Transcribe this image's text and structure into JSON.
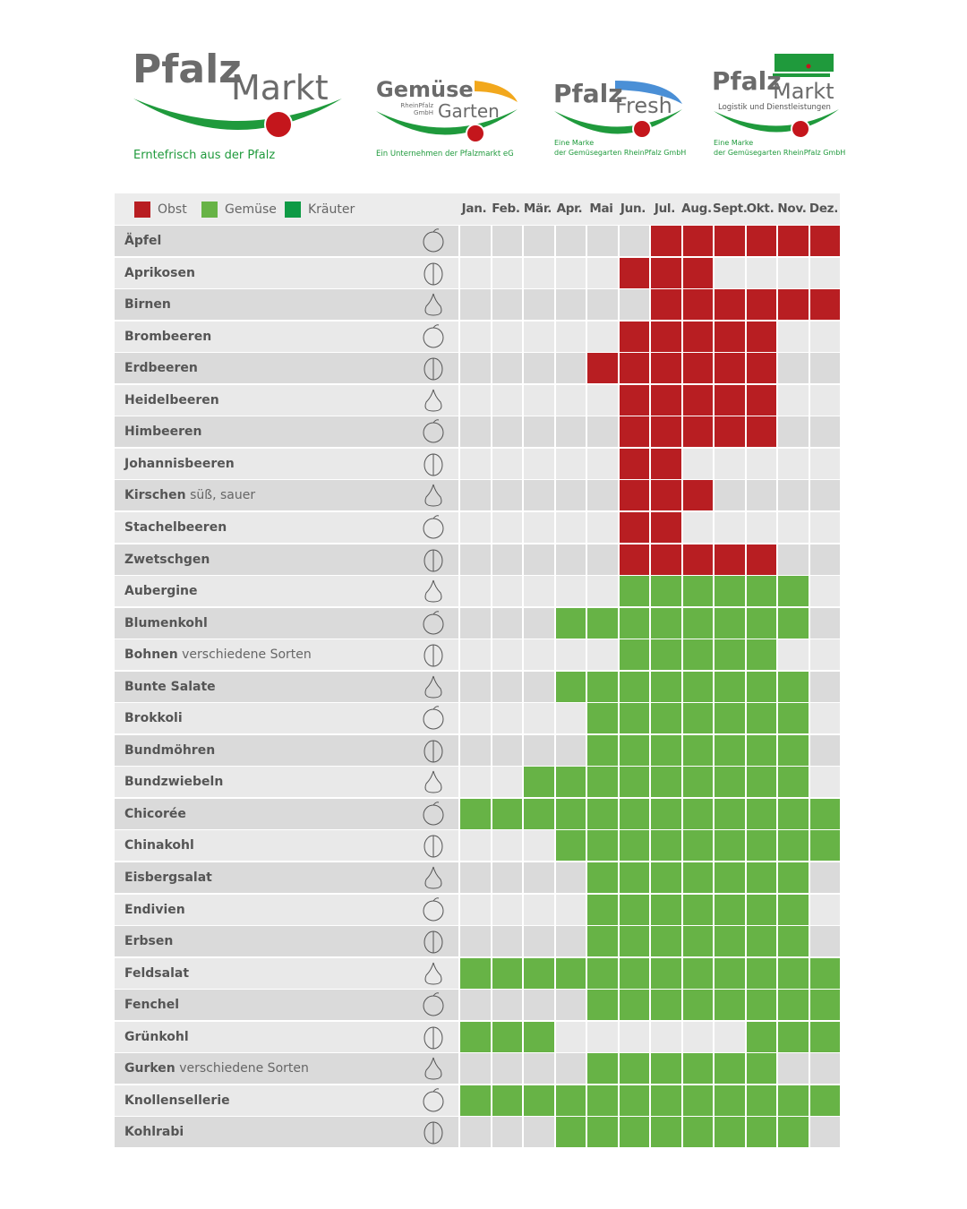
{
  "logos": [
    {
      "word1": "Pfalz",
      "word2": "Markt",
      "tagline": "Erntefrisch aus der Pfalz"
    },
    {
      "word1": "Gemüse",
      "word2": "Garten",
      "sub": "RheinPfalz GmbH",
      "tagline": "Ein Unternehmen der Pfalzmarkt eG"
    },
    {
      "word1": "Pfalz",
      "word2": "Fresh",
      "tagline1": "Eine Marke",
      "tagline2": "der Gemüsegarten RheinPfalz GmbH"
    },
    {
      "word1": "Pfalz",
      "word2": "Markt",
      "sub": "Logistik und Dienstleistungen",
      "tagline1": "Eine Marke",
      "tagline2": "der Gemüsegarten RheinPfalz GmbH"
    }
  ],
  "colors": {
    "obst": "#b81e22",
    "gemuese": "#67b346",
    "kraeuter": "#0e9a45",
    "row_dark": "#dadada",
    "row_light": "#e9e9e9",
    "logo_green": "#1f9a3c",
    "logo_red": "#c4161c"
  },
  "chart_data": {
    "type": "table",
    "legend": [
      {
        "label": "Obst",
        "color": "#b81e22"
      },
      {
        "label": "Gemüse",
        "color": "#67b346"
      },
      {
        "label": "Kräuter",
        "color": "#0e9a45"
      }
    ],
    "months": [
      "Jan.",
      "Feb.",
      "Mär.",
      "Apr.",
      "Mai",
      "Jun.",
      "Jul.",
      "Aug.",
      "Sept.",
      "Okt.",
      "Nov.",
      "Dez."
    ],
    "rows": [
      {
        "name": "Äpfel",
        "note": "",
        "category": "obst",
        "icon": "apple-icon",
        "months": [
          7,
          8,
          9,
          10,
          11,
          12
        ]
      },
      {
        "name": "Aprikosen",
        "note": "",
        "category": "obst",
        "icon": "apricot-icon",
        "months": [
          6,
          7,
          8
        ]
      },
      {
        "name": "Birnen",
        "note": "",
        "category": "obst",
        "icon": "pear-icon",
        "months": [
          7,
          8,
          9,
          10,
          11,
          12
        ]
      },
      {
        "name": "Brombeeren",
        "note": "",
        "category": "obst",
        "icon": "blackberry-icon",
        "months": [
          6,
          7,
          8,
          9,
          10
        ]
      },
      {
        "name": "Erdbeeren",
        "note": "",
        "category": "obst",
        "icon": "strawberry-icon",
        "months": [
          5,
          6,
          7,
          8,
          9,
          10
        ]
      },
      {
        "name": "Heidelbeeren",
        "note": "",
        "category": "obst",
        "icon": "blueberry-icon",
        "months": [
          6,
          7,
          8,
          9,
          10
        ]
      },
      {
        "name": "Himbeeren",
        "note": "",
        "category": "obst",
        "icon": "raspberry-icon",
        "months": [
          6,
          7,
          8,
          9,
          10
        ]
      },
      {
        "name": "Johannisbeeren",
        "note": "",
        "category": "obst",
        "icon": "currant-icon",
        "months": [
          6,
          7
        ]
      },
      {
        "name": "Kirschen",
        "note": "süß, sauer",
        "category": "obst",
        "icon": "cherry-icon",
        "months": [
          6,
          7,
          8
        ]
      },
      {
        "name": "Stachelbeeren",
        "note": "",
        "category": "obst",
        "icon": "gooseberry-icon",
        "months": [
          6,
          7
        ]
      },
      {
        "name": "Zwetschgen",
        "note": "",
        "category": "obst",
        "icon": "plum-icon",
        "months": [
          6,
          7,
          8,
          9,
          10
        ]
      },
      {
        "name": "Aubergine",
        "note": "",
        "category": "gemuese",
        "icon": "eggplant-icon",
        "months": [
          6,
          7,
          8,
          9,
          10,
          11
        ]
      },
      {
        "name": "Blumenkohl",
        "note": "",
        "category": "gemuese",
        "icon": "cauliflower-icon",
        "months": [
          4,
          5,
          6,
          7,
          8,
          9,
          10,
          11
        ]
      },
      {
        "name": "Bohnen",
        "note": "verschiedene Sorten",
        "category": "gemuese",
        "icon": "beans-icon",
        "months": [
          6,
          7,
          8,
          9,
          10
        ]
      },
      {
        "name": "Bunte Salate",
        "note": "",
        "category": "gemuese",
        "icon": "lettuce-icon",
        "months": [
          4,
          5,
          6,
          7,
          8,
          9,
          10,
          11
        ]
      },
      {
        "name": "Brokkoli",
        "note": "",
        "category": "gemuese",
        "icon": "broccoli-icon",
        "months": [
          5,
          6,
          7,
          8,
          9,
          10,
          11
        ]
      },
      {
        "name": "Bundmöhren",
        "note": "",
        "category": "gemuese",
        "icon": "carrot-icon",
        "months": [
          5,
          6,
          7,
          8,
          9,
          10,
          11
        ]
      },
      {
        "name": "Bundzwiebeln",
        "note": "",
        "category": "gemuese",
        "icon": "spring-onion-icon",
        "months": [
          3,
          4,
          5,
          6,
          7,
          8,
          9,
          10,
          11
        ]
      },
      {
        "name": "Chicorée",
        "note": "",
        "category": "gemuese",
        "icon": "chicory-icon",
        "months": [
          1,
          2,
          3,
          4,
          5,
          6,
          7,
          8,
          9,
          10,
          11,
          12
        ]
      },
      {
        "name": "Chinakohl",
        "note": "",
        "category": "gemuese",
        "icon": "chinese-cabbage-icon",
        "months": [
          4,
          5,
          6,
          7,
          8,
          9,
          10,
          11,
          12
        ]
      },
      {
        "name": "Eisbergsalat",
        "note": "",
        "category": "gemuese",
        "icon": "iceberg-lettuce-icon",
        "months": [
          5,
          6,
          7,
          8,
          9,
          10,
          11
        ]
      },
      {
        "name": "Endivien",
        "note": "",
        "category": "gemuese",
        "icon": "endive-icon",
        "months": [
          5,
          6,
          7,
          8,
          9,
          10,
          11
        ]
      },
      {
        "name": "Erbsen",
        "note": "",
        "category": "gemuese",
        "icon": "peas-icon",
        "months": [
          5,
          6,
          7,
          8,
          9,
          10,
          11
        ]
      },
      {
        "name": "Feldsalat",
        "note": "",
        "category": "gemuese",
        "icon": "lambs-lettuce-icon",
        "months": [
          1,
          2,
          3,
          4,
          5,
          6,
          7,
          8,
          9,
          10,
          11,
          12
        ]
      },
      {
        "name": "Fenchel",
        "note": "",
        "category": "gemuese",
        "icon": "fennel-icon",
        "months": [
          5,
          6,
          7,
          8,
          9,
          10,
          11,
          12
        ]
      },
      {
        "name": "Grünkohl",
        "note": "",
        "category": "gemuese",
        "icon": "kale-icon",
        "months": [
          1,
          2,
          3,
          10,
          11,
          12
        ]
      },
      {
        "name": "Gurken",
        "note": "verschiedene Sorten",
        "category": "gemuese",
        "icon": "cucumber-icon",
        "months": [
          5,
          6,
          7,
          8,
          9,
          10
        ]
      },
      {
        "name": "Knollensellerie",
        "note": "",
        "category": "gemuese",
        "icon": "celeriac-icon",
        "months": [
          1,
          2,
          3,
          4,
          5,
          6,
          7,
          8,
          9,
          10,
          11,
          12
        ]
      },
      {
        "name": "Kohlrabi",
        "note": "",
        "category": "gemuese",
        "icon": "kohlrabi-icon",
        "months": [
          4,
          5,
          6,
          7,
          8,
          9,
          10,
          11
        ]
      }
    ]
  }
}
